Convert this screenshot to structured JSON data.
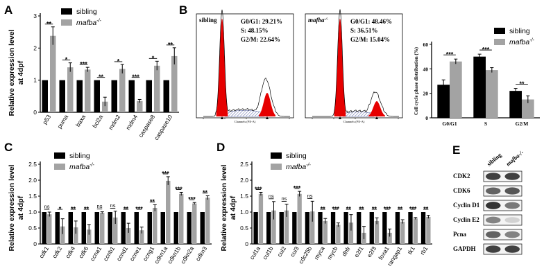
{
  "panels": {
    "A": "A",
    "B": "B",
    "C": "C",
    "D": "D",
    "E": "E"
  },
  "legend": {
    "sibling": "sibling",
    "mutant": "mafba",
    "mutant_sup": "-/-"
  },
  "ylabel_line1": "Relative expression level",
  "ylabel_line2": "at 4dpf",
  "colors": {
    "sibling": "#000000",
    "mutant": "#a3a3a3",
    "red": "#e60000"
  },
  "chart_data": [
    {
      "id": "A",
      "type": "bar",
      "categories": [
        "p53",
        "puma",
        "baxa",
        "bcl2a",
        "mdm2",
        "mdm4",
        "caspase8",
        "caspase10"
      ],
      "series": [
        {
          "name": "sibling",
          "values": [
            1,
            1,
            1,
            1,
            1,
            1,
            1,
            1
          ]
        },
        {
          "name": "mafba-/-",
          "values": [
            2.38,
            1.4,
            1.33,
            0.33,
            1.35,
            0.35,
            1.45,
            1.75
          ],
          "errors": [
            0.28,
            0.14,
            0.07,
            0.14,
            0.14,
            0.05,
            0.14,
            0.26
          ]
        }
      ],
      "significance": [
        "**",
        "*",
        "***",
        "**",
        "*",
        "***",
        "*",
        "**"
      ],
      "yticks": [
        0,
        1,
        2,
        3
      ],
      "ylim": [
        0,
        3
      ]
    },
    {
      "id": "C",
      "type": "bar",
      "categories": [
        "cdk1",
        "cdk2",
        "cdk4",
        "cdk6",
        "ccna1",
        "ccnb1",
        "ccnd1",
        "ccne1",
        "ccng1",
        "cdkn1a",
        "cdkn1b",
        "cdkn2a",
        "cdkn3"
      ],
      "series": [
        {
          "name": "sibling",
          "values": [
            1,
            1,
            1,
            1,
            1,
            1,
            1,
            1,
            1,
            1,
            1,
            1,
            1
          ]
        },
        {
          "name": "mafba-/-",
          "values": [
            0.93,
            0.55,
            0.52,
            0.45,
            0.98,
            0.83,
            0.5,
            0.43,
            1.13,
            1.98,
            1.57,
            1.27,
            1.45
          ],
          "errors": [
            0.07,
            0.24,
            0.2,
            0.16,
            0.03,
            0.2,
            0.15,
            0.1,
            0.1,
            0.13,
            0.05,
            0.03,
            0.06
          ]
        }
      ],
      "significance": [
        "ns",
        "*",
        "**",
        "**",
        "ns",
        "ns",
        "**",
        "***",
        "**",
        "***",
        "***",
        "***",
        "**"
      ],
      "yticks": [
        0,
        0.5,
        1.0,
        1.5,
        2.0,
        2.5
      ],
      "ylim": [
        0,
        2.5
      ]
    },
    {
      "id": "D",
      "type": "bar",
      "categories": [
        "cul1a",
        "cul1b",
        "cul2",
        "cul3",
        "cdc25b",
        "myca",
        "mycb",
        "dhfr",
        "e2f1",
        "e2f3",
        "foxa1",
        "rangap1",
        "tk1",
        "rb1"
      ],
      "series": [
        {
          "name": "sibling",
          "values": [
            1,
            1,
            1,
            1,
            1,
            1,
            1,
            1,
            1,
            1,
            1,
            1,
            1,
            1
          ]
        },
        {
          "name": "mafba-/-",
          "values": [
            1.57,
            1.05,
            1.05,
            1.57,
            1.02,
            0.72,
            0.6,
            0.67,
            0.35,
            0.72,
            0.35,
            0.7,
            0.8,
            0.85
          ],
          "errors": [
            0.05,
            0.28,
            0.2,
            0.08,
            0.32,
            0.08,
            0.06,
            0.25,
            0.2,
            0.1,
            0.12,
            0.06,
            0.03,
            0.05
          ]
        }
      ],
      "significance": [
        "***",
        "ns",
        "ns",
        "***",
        "ns",
        "**",
        "***",
        "**",
        "**",
        "**",
        "***",
        "**",
        "***",
        "**"
      ],
      "yticks": [
        0,
        0.5,
        1.0,
        1.5,
        2.0,
        2.5
      ],
      "ylim": [
        0,
        2.5
      ]
    },
    {
      "id": "B-bar",
      "type": "bar",
      "categories": [
        "G0/G1",
        "S",
        "G2/M"
      ],
      "series": [
        {
          "name": "sibling",
          "values": [
            27,
            50,
            22
          ],
          "errors": [
            4,
            2,
            2
          ]
        },
        {
          "name": "mafba-/-",
          "values": [
            46,
            39,
            15
          ],
          "errors": [
            2,
            2,
            3
          ]
        }
      ],
      "significance": [
        "***",
        "***",
        "**"
      ],
      "ylabel": "Cell cycle phase distribution (%)",
      "yticks": [
        0,
        20,
        40,
        60
      ],
      "ylim": [
        0,
        60
      ]
    }
  ],
  "flow": {
    "sibling": {
      "title": "sibling",
      "g0": "G0/G1: 29.21%",
      "s": "S: 48.15%",
      "g2": "G2/M: 22.64%"
    },
    "mutant": {
      "title": "mafba",
      "title_sup": "-/-",
      "g0": "G0/G1: 48.46%",
      "s": "S: 36.51%",
      "g2": "G2/M: 15.04%"
    },
    "xlabel": "Channels (PE-A)"
  },
  "western": {
    "headers": [
      "sibling",
      "mafba-/-"
    ],
    "rows": [
      "CDK2",
      "CDK6",
      "Cyclin D1",
      "Cyclin E2",
      "Pcna",
      "GAPDH"
    ],
    "intensity": [
      [
        0.85,
        0.85
      ],
      [
        0.7,
        0.75
      ],
      [
        0.9,
        0.6
      ],
      [
        0.55,
        0.2
      ],
      [
        0.7,
        0.55
      ],
      [
        0.85,
        0.85
      ]
    ]
  }
}
